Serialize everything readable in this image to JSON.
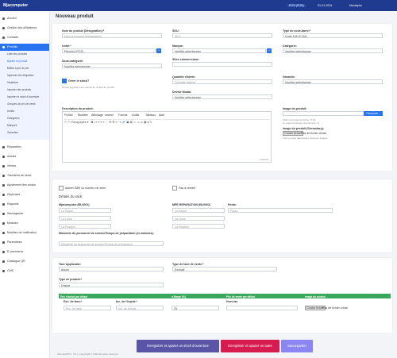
{
  "topbar": {
    "brand": "Mjacomputer",
    "location": "POS (POS)",
    "date": "01-01-2024",
    "user": "Mustapha"
  },
  "sidebar": {
    "before": [
      "Accueil",
      "Gestion des utilisateurs",
      "Contacts"
    ],
    "active": "Produits",
    "subitems": [
      "Liste des produits",
      "Ajouter un produit",
      "Mettre à jour le prix",
      "Imprimer des étiquettes",
      "Variations",
      "Importer des produits",
      "Importer le stock d'ouverture",
      "Groupes de prix de vente",
      "Unités",
      "Catégories",
      "Marques",
      "Garanties"
    ],
    "after": [
      "Réparation",
      "Achats",
      "Ventes",
      "Transferts de stock",
      "Ajustement des stocks",
      "Dépenses",
      "Rapports",
      "Sauvegarder",
      "Modules",
      "Modèles de notification",
      "Paramètres",
      "E-commerce",
      "Catalogue QR",
      "CMS"
    ]
  },
  "page": {
    "title": "Nouveau produit"
  },
  "form": {
    "name": {
      "label": "Nom du produit (Désignation):*",
      "placeholder": "Nom du produit (Désignation)"
    },
    "sku": {
      "label": "SKU:",
      "placeholder": "SKU"
    },
    "barcode": {
      "label": "Type de code-barre:*",
      "value": "Code 128 (C128)"
    },
    "unit": {
      "label": "Unité:*",
      "value": "Pièce(s) (PCS)"
    },
    "brand": {
      "label": "Marque:",
      "value": "Veuillez sélectionner"
    },
    "category": {
      "label": "Catégorie:",
      "value": "Veuillez sélectionner"
    },
    "subcategory": {
      "label": "Sous-catégorie:",
      "value": "Veuillez sélectionner"
    },
    "sites": {
      "label": "Sites commerciaux:"
    },
    "stock": {
      "label": "Gérer le stock?",
      "help": "Activer la gestion des stocks au niveau du produit"
    },
    "alert": {
      "label": "Quantité d'alerte:",
      "placeholder": "Quantité d'alerte"
    },
    "warranty": {
      "label": "Garantie:",
      "value": "Veuillez sélectionner"
    },
    "currency": {
      "label": "Devise Modal:",
      "value": "Veuillez sélectionner"
    },
    "description": {
      "label": "Description du produit:",
      "menus": [
        "Fichier",
        "Modifier",
        "Affichage",
        "Insérer",
        "Format",
        "Outils",
        "Tableau",
        "Aide"
      ],
      "style": "Paragraphe",
      "status": "0 MOTS"
    },
    "image": {
      "label": "Image du produit:",
      "button": "Parcourir...",
      "help1": "Taille maximale du fichier: 5 Mo",
      "help2": "Le rapport d'aspect devrait être 1:1"
    },
    "image2": {
      "label": "Image du produit (Secondary):",
      "button": "Choisir fichier",
      "none": "Pas de fichier choisi",
      "help": "Vous pouvez télécharger plusieurs images"
    },
    "imei": "Activer IMEI ou numéro de série",
    "not_sale": "Pas à vendre",
    "rack": {
      "title": "Détails du rack:",
      "locations": [
        "Mjacomputer (BL0001)",
        "MPE REPARATION (BL0002)"
      ],
      "fields": [
        "Le Rayon",
        "La Ligne",
        "La Position"
      ]
    },
    "weight": {
      "label": "Poids:",
      "placeholder": "Poids"
    },
    "timer": {
      "label": "Minuterie du personnel de service/Temps de préparation (en minutes):",
      "placeholder": "Minuterie du personnel de service/Temps de préparation"
    },
    "tax": {
      "label": "Taxe Applicable:",
      "value": "Aucun"
    },
    "tax_type": {
      "label": "Type de taxe de vente:*",
      "value": "Exclusif"
    },
    "product_type": {
      "label": "Type de produit:*",
      "value": "Unique"
    },
    "price_table": {
      "headers": [
        "Prix d'achat par défaut",
        "x Marge (%)",
        "Prix de vente par défaut",
        "Image du produit"
      ],
      "exc": "Exc. de taxe:*",
      "inc": "Inc. de l'impôt:*",
      "exc_ph": "Exc. de taxe",
      "inc_ph": "Inc. de l'impôt",
      "margin": "25",
      "sale": "Hors tax",
      "file": "Choisir fichier",
      "none": "Pas de fichier choisi"
    }
  },
  "buttons": {
    "opening": "Enregistrer et ajouter un stock d'ouverture",
    "another": "Enregistrer et ajouter un autre",
    "save": "Sauvegarder"
  },
  "footer": "UltimatePOS - V6.x | Copyright © 2024 All rights reserved."
}
